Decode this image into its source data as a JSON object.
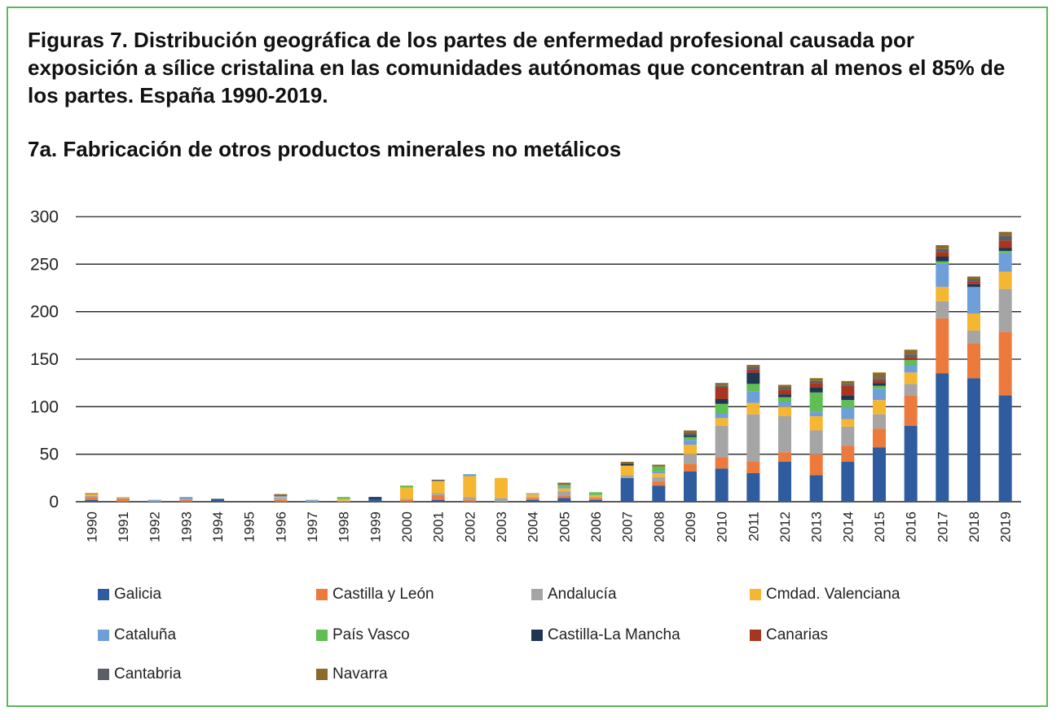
{
  "title": "Figuras 7. Distribución geográfica de los partes de enfermedad profesional causada por exposición a sílice cristalina en las comunidades autónomas que concentran al menos el 85% de los partes. España 1990-2019.",
  "subtitle": "7a. Fabricación de otros productos minerales no metálicos",
  "chart_data": {
    "type": "bar",
    "stacked": true,
    "title": "7a. Fabricación de otros productos minerales no metálicos",
    "xlabel": "",
    "ylabel": "",
    "ylim": [
      0,
      300
    ],
    "yticks": [
      0,
      50,
      100,
      150,
      200,
      250,
      300
    ],
    "grid": true,
    "legend_position": "bottom",
    "categories": [
      "1990",
      "1991",
      "1992",
      "1993",
      "1994",
      "1995",
      "1996",
      "1997",
      "1998",
      "1999",
      "2000",
      "2001",
      "2002",
      "2003",
      "2004",
      "2005",
      "2006",
      "2007",
      "2008",
      "2009",
      "2010",
      "2011",
      "2012",
      "2013",
      "2014",
      "2015",
      "2016",
      "2017",
      "2018",
      "2019"
    ],
    "series": [
      {
        "name": "Galicia",
        "color": "#2e5c9e",
        "values": [
          2,
          0,
          0,
          0,
          2,
          0,
          0,
          0,
          0,
          3,
          0,
          2,
          0,
          0,
          2,
          4,
          2,
          25,
          17,
          32,
          35,
          30,
          42,
          28,
          42,
          57,
          80,
          135,
          130,
          112
        ]
      },
      {
        "name": "Castilla y León",
        "color": "#ec7a3c",
        "values": [
          3,
          3,
          0,
          2,
          0,
          0,
          2,
          0,
          0,
          0,
          2,
          5,
          2,
          0,
          2,
          2,
          2,
          0,
          4,
          8,
          12,
          12,
          10,
          22,
          17,
          20,
          32,
          58,
          37,
          67
        ]
      },
      {
        "name": "Andalucía",
        "color": "#a5a5a5",
        "values": [
          1,
          1,
          1,
          1,
          0,
          0,
          2,
          1,
          1,
          0,
          1,
          2,
          3,
          4,
          1,
          5,
          1,
          3,
          5,
          10,
          33,
          50,
          38,
          25,
          20,
          15,
          12,
          18,
          13,
          45
        ]
      },
      {
        "name": "Cmdad. Valenciana",
        "color": "#f5b731",
        "values": [
          2,
          1,
          0,
          0,
          0,
          0,
          1,
          0,
          2,
          0,
          12,
          13,
          22,
          21,
          3,
          3,
          2,
          10,
          4,
          10,
          8,
          12,
          10,
          15,
          8,
          15,
          12,
          15,
          18,
          18
        ]
      },
      {
        "name": "Cataluña",
        "color": "#6f9fd8",
        "values": [
          0,
          0,
          1,
          2,
          0,
          0,
          1,
          1,
          0,
          0,
          0,
          0,
          2,
          0,
          1,
          2,
          0,
          0,
          2,
          5,
          5,
          12,
          5,
          5,
          12,
          12,
          8,
          25,
          28,
          20
        ]
      },
      {
        "name": "País Vasco",
        "color": "#5fbf52",
        "values": [
          0,
          0,
          0,
          0,
          0,
          0,
          0,
          0,
          2,
          0,
          2,
          0,
          0,
          0,
          0,
          2,
          3,
          0,
          5,
          3,
          10,
          8,
          5,
          20,
          8,
          3,
          5,
          2,
          0,
          2
        ]
      },
      {
        "name": "Castilla-La Mancha",
        "color": "#1f3552",
        "values": [
          0,
          0,
          0,
          0,
          1,
          0,
          0,
          0,
          0,
          2,
          0,
          1,
          0,
          0,
          0,
          0,
          0,
          2,
          0,
          2,
          5,
          12,
          3,
          5,
          5,
          3,
          0,
          5,
          3,
          3
        ]
      },
      {
        "name": "Canarias",
        "color": "#a8361f",
        "values": [
          0,
          0,
          0,
          0,
          0,
          0,
          0,
          0,
          0,
          0,
          0,
          0,
          0,
          0,
          0,
          0,
          0,
          0,
          0,
          0,
          12,
          3,
          5,
          5,
          10,
          3,
          3,
          5,
          3,
          8
        ]
      },
      {
        "name": "Cantabria",
        "color": "#5a5f66",
        "values": [
          0,
          0,
          0,
          0,
          0,
          0,
          0,
          0,
          0,
          0,
          0,
          0,
          0,
          0,
          0,
          0,
          0,
          0,
          0,
          2,
          2,
          3,
          2,
          2,
          2,
          2,
          3,
          3,
          2,
          5
        ]
      },
      {
        "name": "Navarra",
        "color": "#8b6a2c",
        "values": [
          1,
          0,
          0,
          0,
          0,
          0,
          2,
          0,
          0,
          0,
          0,
          0,
          0,
          0,
          0,
          2,
          0,
          2,
          2,
          3,
          3,
          2,
          3,
          3,
          3,
          6,
          5,
          4,
          3,
          4
        ]
      }
    ]
  }
}
